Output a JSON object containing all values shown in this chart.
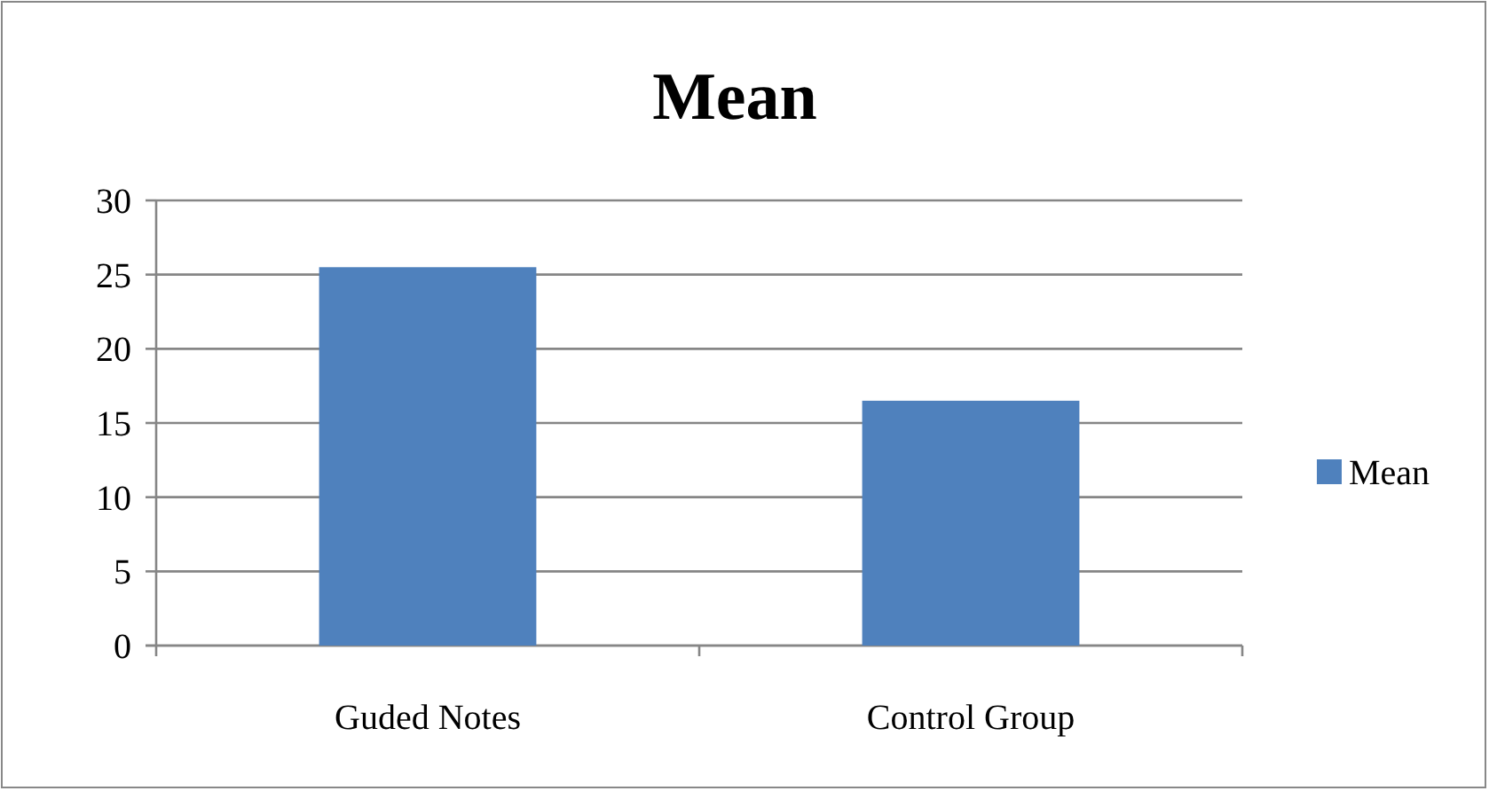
{
  "chart_data": {
    "type": "bar",
    "title": "Mean",
    "categories": [
      "Guded Notes",
      "Control Group"
    ],
    "series": [
      {
        "name": "Mean",
        "color": "#4f81bd",
        "values": [
          25.5,
          16.5
        ]
      }
    ],
    "ylim": [
      0,
      30
    ],
    "yticks": [
      0,
      5,
      10,
      15,
      20,
      25,
      30
    ],
    "grid": "y",
    "legend": "right"
  }
}
